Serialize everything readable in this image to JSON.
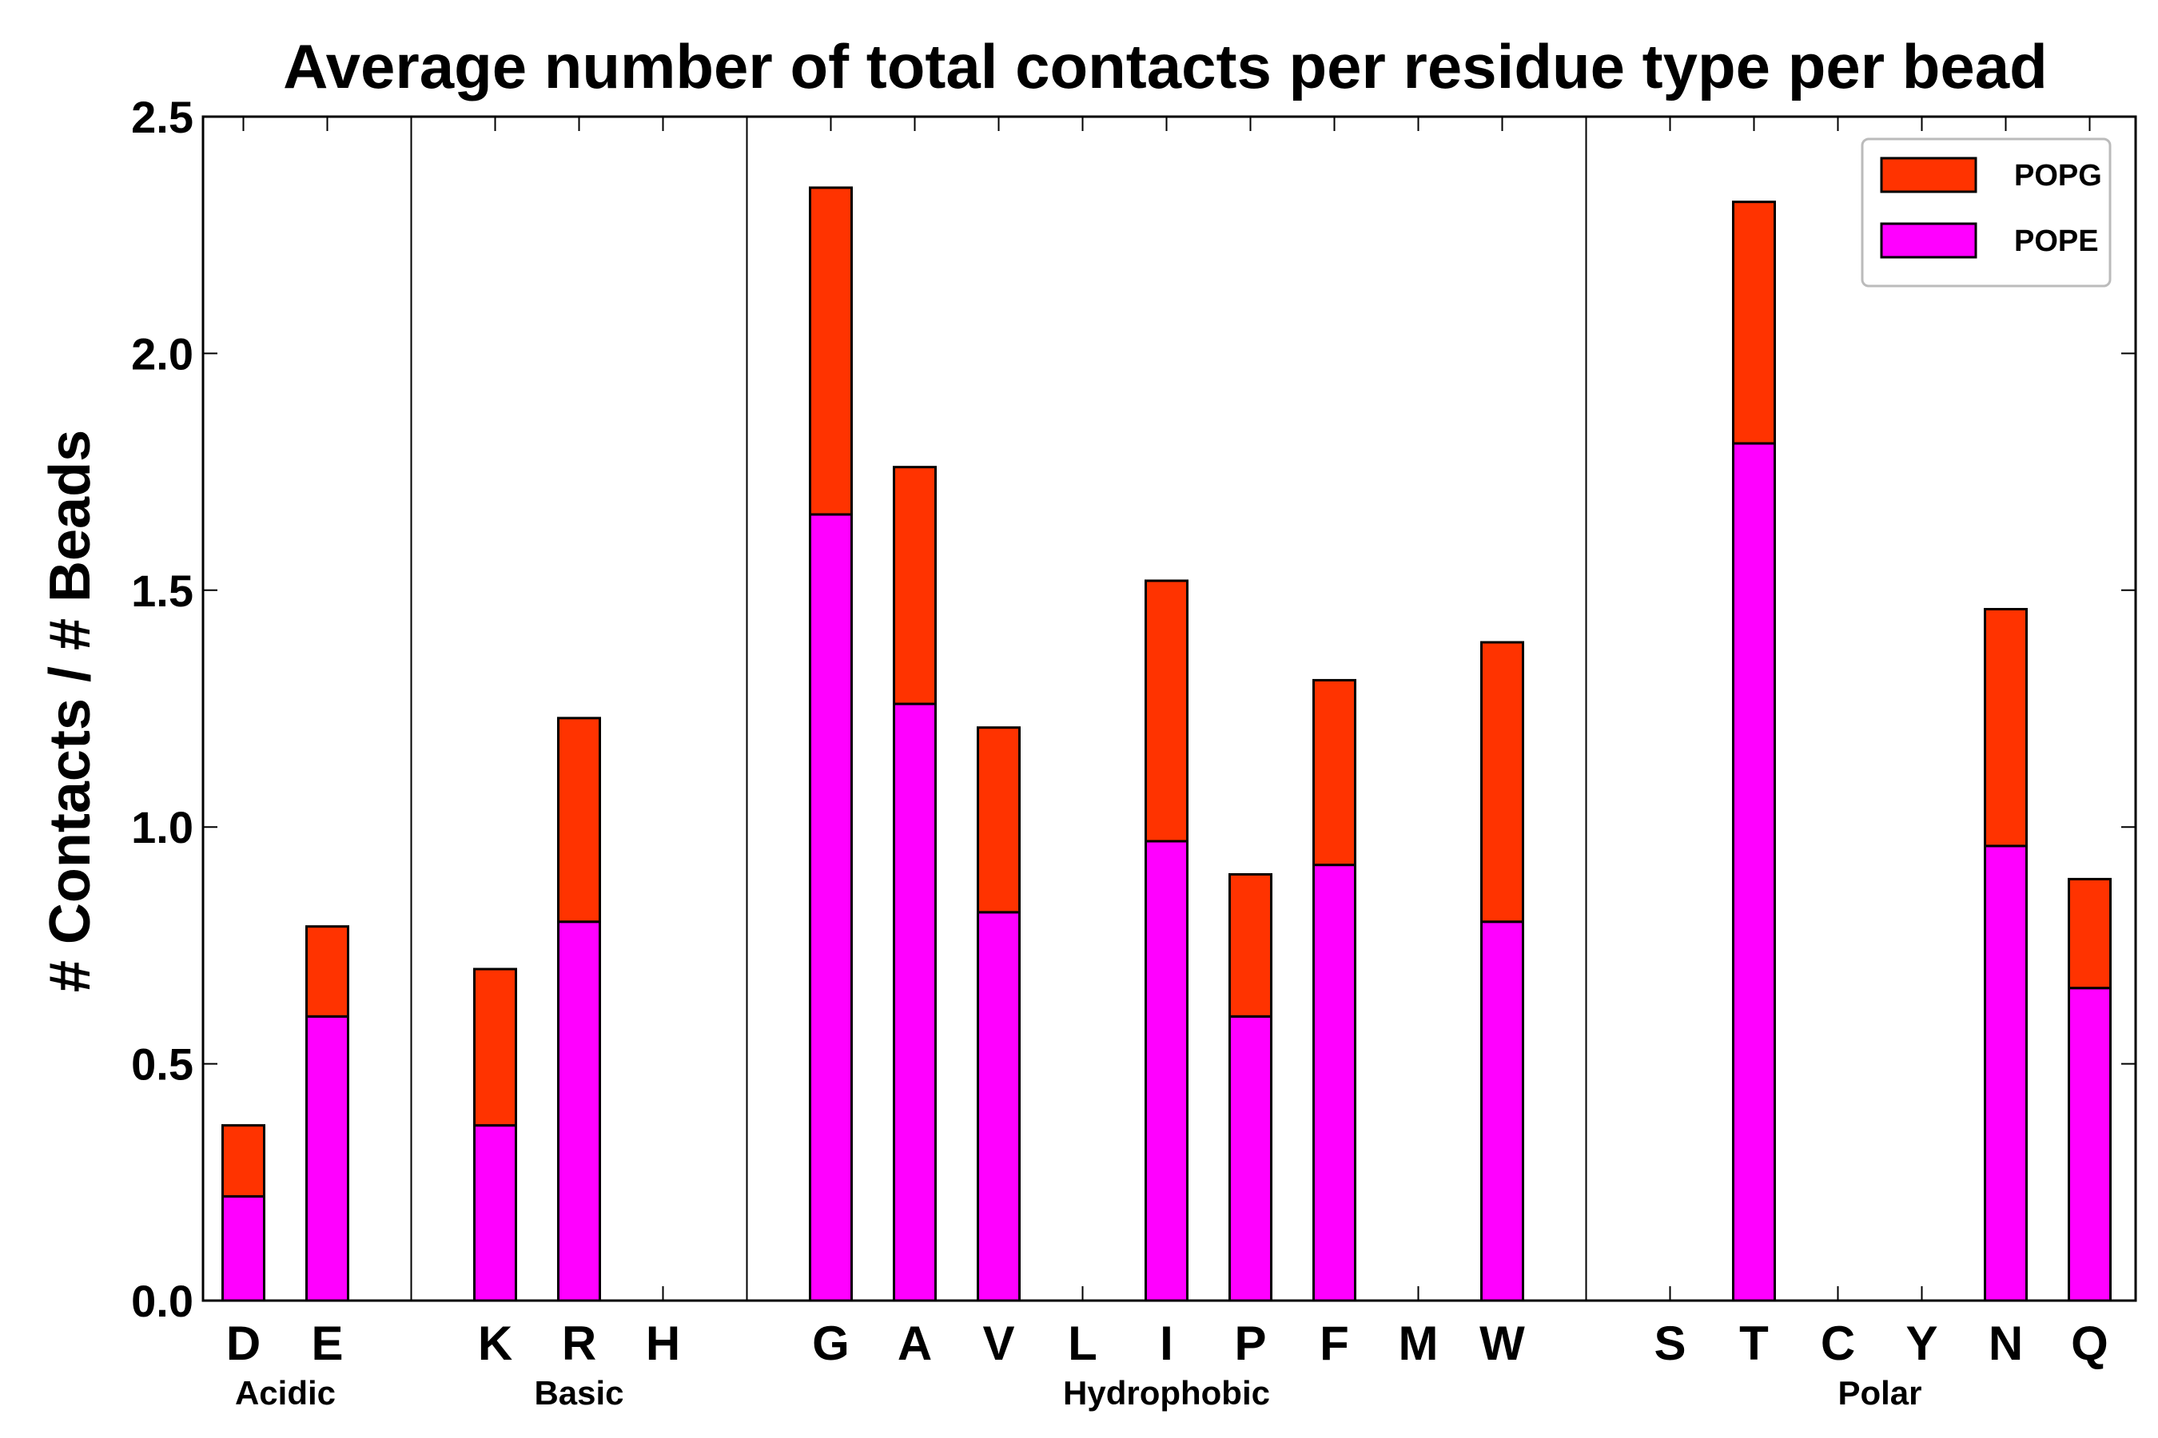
{
  "chart_data": {
    "type": "bar",
    "stacked": true,
    "title": "Average number of total contacts per residue type per bead",
    "xlabel": "",
    "ylabel": "# Contacts / # Beads",
    "ylim": [
      0,
      2.5
    ],
    "yticks": [
      "0.0",
      "0.5",
      "1.0",
      "1.5",
      "2.0",
      "2.5"
    ],
    "ytick_values": [
      0,
      0.5,
      1.0,
      1.5,
      2.0,
      2.5
    ],
    "legend_position": "top-right",
    "categories": [
      "D",
      "E",
      "",
      "K",
      "R",
      "H",
      "",
      "G",
      "A",
      "V",
      "L",
      "I",
      "P",
      "F",
      "M",
      "W",
      "",
      "S",
      "T",
      "C",
      "Y",
      "N",
      "Q"
    ],
    "series": [
      {
        "name": "POPE",
        "color": "#ff00ff",
        "values": [
          0.22,
          0.6,
          0,
          0.37,
          0.8,
          0,
          0,
          1.66,
          1.26,
          0.82,
          0,
          0.97,
          0.6,
          0.92,
          0,
          0.8,
          0,
          0,
          1.81,
          0,
          0,
          0.96,
          0.66
        ]
      },
      {
        "name": "POPG",
        "color": "#ff3300",
        "values": [
          0.15,
          0.19,
          0,
          0.33,
          0.43,
          0,
          0,
          0.69,
          0.5,
          0.39,
          0,
          0.55,
          0.3,
          0.39,
          0,
          0.59,
          0,
          0,
          0.51,
          0,
          0,
          0.5,
          0.23
        ]
      }
    ],
    "groups": [
      {
        "label": "Acidic",
        "from": 0,
        "to": 1
      },
      {
        "label": "Basic",
        "from": 3,
        "to": 5
      },
      {
        "label": "Hydrophobic",
        "from": 7,
        "to": 15
      },
      {
        "label": "Polar",
        "from": 17,
        "to": 22
      }
    ],
    "separator_indices": [
      2,
      6,
      16
    ]
  }
}
